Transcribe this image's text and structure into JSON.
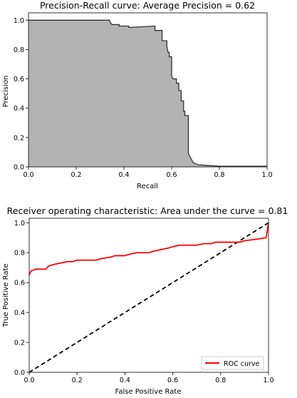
{
  "chart_data": [
    {
      "type": "area",
      "title": "Precision-Recall curve: Average Precision =          0.62",
      "xlabel": "Recall",
      "ylabel": "Precision",
      "xlim": [
        0.0,
        1.0
      ],
      "ylim": [
        0.0,
        1.05
      ],
      "xticks": [
        "0.0",
        "0.2",
        "0.4",
        "0.6",
        "0.8",
        "1.0"
      ],
      "yticks": [
        "0.0",
        "0.2",
        "0.4",
        "0.6",
        "0.8",
        "1.0"
      ],
      "fill_color": "#b3b3b3",
      "line_color": "#333333",
      "step": true,
      "points": [
        [
          0.0,
          1.0
        ],
        [
          0.34,
          1.0
        ],
        [
          0.34,
          0.99
        ],
        [
          0.35,
          0.97
        ],
        [
          0.38,
          0.97
        ],
        [
          0.38,
          0.96
        ],
        [
          0.42,
          0.96
        ],
        [
          0.42,
          0.95
        ],
        [
          0.53,
          0.96
        ],
        [
          0.53,
          0.93
        ],
        [
          0.56,
          0.93
        ],
        [
          0.56,
          0.86
        ],
        [
          0.58,
          0.86
        ],
        [
          0.58,
          0.82
        ],
        [
          0.585,
          0.78
        ],
        [
          0.59,
          0.78
        ],
        [
          0.59,
          0.75
        ],
        [
          0.6,
          0.75
        ],
        [
          0.6,
          0.62
        ],
        [
          0.605,
          0.6
        ],
        [
          0.62,
          0.6
        ],
        [
          0.62,
          0.57
        ],
        [
          0.63,
          0.57
        ],
        [
          0.63,
          0.52
        ],
        [
          0.64,
          0.52
        ],
        [
          0.64,
          0.45
        ],
        [
          0.65,
          0.45
        ],
        [
          0.65,
          0.38
        ],
        [
          0.655,
          0.38
        ],
        [
          0.655,
          0.35
        ],
        [
          0.67,
          0.35
        ],
        [
          0.67,
          0.09
        ],
        [
          0.68,
          0.06
        ],
        [
          0.69,
          0.03
        ],
        [
          0.71,
          0.015
        ],
        [
          0.75,
          0.01
        ],
        [
          0.8,
          0.005
        ],
        [
          1.0,
          0.005
        ]
      ]
    },
    {
      "type": "line",
      "title": "Receiver operating characteristic: Area under the          curve = 0.81",
      "xlabel": "False Positive Rate",
      "ylabel": "True Positive Rate",
      "xlim": [
        0.0,
        1.0
      ],
      "ylim": [
        0.0,
        1.03
      ],
      "xticks": [
        "0.0",
        "0.2",
        "0.4",
        "0.6",
        "0.8",
        "1.0"
      ],
      "yticks": [
        "0.0",
        "0.2",
        "0.4",
        "0.6",
        "0.8",
        "1.0"
      ],
      "legend": {
        "position": "lower-right",
        "label": "ROC curve"
      },
      "series": [
        {
          "name": "ROC curve",
          "color": "#ff0000",
          "points": [
            [
              0.0,
              0.65
            ],
            [
              0.005,
              0.67
            ],
            [
              0.01,
              0.68
            ],
            [
              0.03,
              0.69
            ],
            [
              0.07,
              0.69
            ],
            [
              0.08,
              0.71
            ],
            [
              0.1,
              0.72
            ],
            [
              0.13,
              0.73
            ],
            [
              0.16,
              0.74
            ],
            [
              0.18,
              0.74
            ],
            [
              0.2,
              0.75
            ],
            [
              0.28,
              0.75
            ],
            [
              0.3,
              0.76
            ],
            [
              0.34,
              0.77
            ],
            [
              0.36,
              0.78
            ],
            [
              0.4,
              0.78
            ],
            [
              0.42,
              0.79
            ],
            [
              0.45,
              0.8
            ],
            [
              0.5,
              0.8
            ],
            [
              0.52,
              0.81
            ],
            [
              0.55,
              0.82
            ],
            [
              0.58,
              0.83
            ],
            [
              0.6,
              0.84
            ],
            [
              0.63,
              0.85
            ],
            [
              0.7,
              0.85
            ],
            [
              0.73,
              0.86
            ],
            [
              0.76,
              0.86
            ],
            [
              0.78,
              0.87
            ],
            [
              0.88,
              0.87
            ],
            [
              0.9,
              0.88
            ],
            [
              0.95,
              0.89
            ],
            [
              0.99,
              0.9
            ],
            [
              0.995,
              0.95
            ],
            [
              1.0,
              1.0
            ]
          ]
        }
      ],
      "diagonal": {
        "color": "#000000",
        "style": "dashed"
      }
    }
  ]
}
